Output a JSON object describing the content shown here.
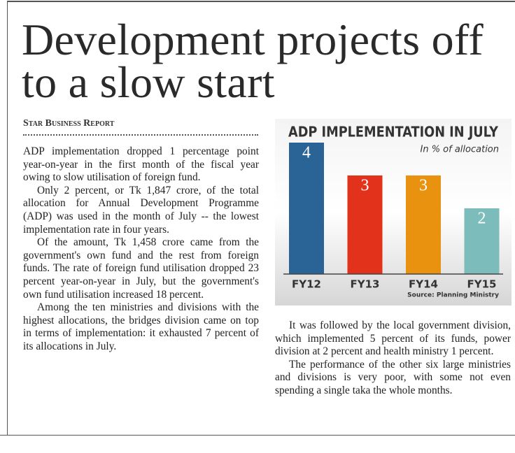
{
  "headline": "Development projects off to a slow start",
  "byline": "Star Business Report",
  "left_column": [
    "ADP implementation dropped 1 percentage point year-on-year in the first month of the fiscal year owing to slow utilisation of foreign fund.",
    "Only 2 percent, or Tk 1,847 crore, of the total allocation for Annual Development Programme (ADP) was used in the month of July -- the lowest implementation rate in four years.",
    "Of the amount, Tk 1,458 crore came from the government's own fund and the rest from foreign funds. The rate of foreign fund utilisation dropped 23 percent year-on-year in July, but the government's own fund utilisation increased 18 percent.",
    "Among the ten ministries and divisions with the highest allocations, the bridges division came on top in terms of implementation: it exhausted 7 percent of its allocations in July."
  ],
  "right_column": [
    "It was followed by the local government division, which implemented 5 percent of its funds, power division at 2 percent and health ministry 1 percent.",
    "The performance of the other six large ministries and divisions is very poor, with some not even spending a single taka the whole months."
  ],
  "chart_data": {
    "type": "bar",
    "title": "ADP IMPLEMENTATION IN JULY",
    "subtitle": "In % of allocation",
    "source": "Source: Planning Ministry",
    "categories": [
      "FY12",
      "FY13",
      "FY14",
      "FY15"
    ],
    "values": [
      4,
      3,
      3,
      2
    ],
    "colors": [
      "#2a6496",
      "#e2321c",
      "#e8920f",
      "#7cbcbb"
    ]
  }
}
